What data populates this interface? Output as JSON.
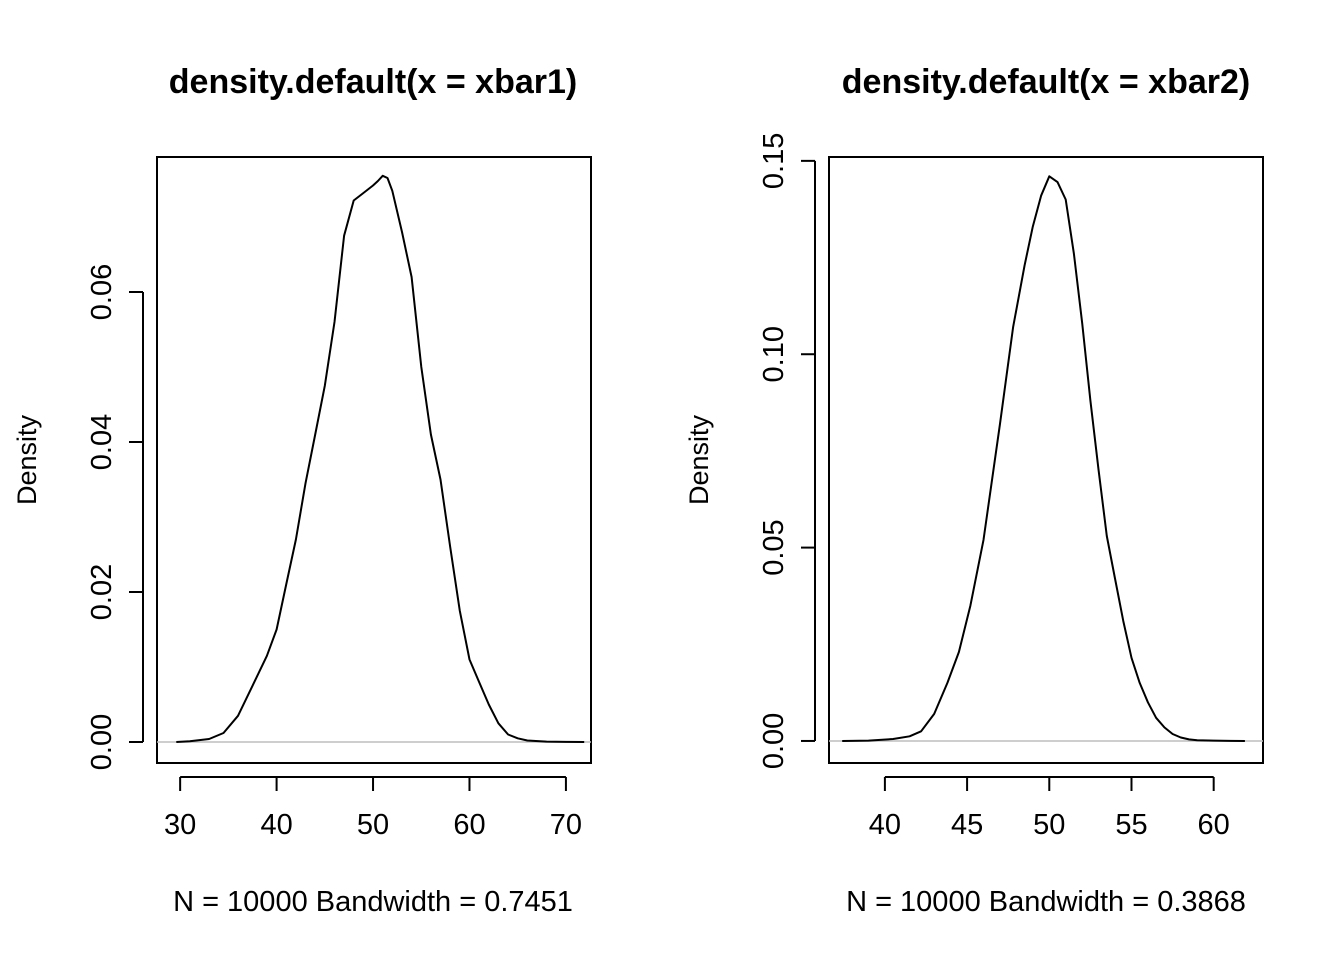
{
  "chart_data": [
    {
      "type": "line",
      "title": "density.default(x = xbar1)",
      "xlabel": "N = 10000   Bandwidth = 0.7451",
      "ylabel": "Density",
      "xlim": [
        27.6,
        72.6
      ],
      "ylim": [
        -0.0028,
        0.078
      ],
      "x_ticks": [
        30,
        40,
        50,
        60,
        70
      ],
      "x_tick_labels": [
        "30",
        "40",
        "50",
        "60",
        "70"
      ],
      "y_ticks": [
        0.0,
        0.02,
        0.04,
        0.06
      ],
      "y_tick_labels": [
        "0.00",
        "0.02",
        "0.04",
        "0.06"
      ],
      "baseline": 0,
      "grid": false,
      "x": [
        29.6,
        31,
        33,
        34.5,
        36,
        37.5,
        39,
        40,
        41,
        42,
        43,
        44,
        45,
        46,
        47,
        48,
        49,
        50,
        50.5,
        51,
        51.5,
        52,
        53,
        54,
        55,
        56,
        57,
        58,
        59,
        60,
        61,
        62,
        63,
        64,
        65,
        66,
        68,
        70,
        71.9
      ],
      "values": [
        0.0,
        0.0001,
        0.0004,
        0.0012,
        0.0035,
        0.0075,
        0.0115,
        0.015,
        0.021,
        0.027,
        0.0345,
        0.041,
        0.0475,
        0.056,
        0.0675,
        0.0722,
        0.0732,
        0.0742,
        0.0748,
        0.0755,
        0.0752,
        0.0735,
        0.068,
        0.062,
        0.05,
        0.041,
        0.035,
        0.026,
        0.0175,
        0.011,
        0.008,
        0.005,
        0.0025,
        0.001,
        0.0005,
        0.0002,
        5e-05,
        2e-05,
        0.0
      ]
    },
    {
      "type": "line",
      "title": "density.default(x = xbar2)",
      "xlabel": "N = 10000   Bandwidth = 0.3868",
      "ylabel": "Density",
      "xlim": [
        36.6,
        63.0
      ],
      "ylim": [
        -0.0057,
        0.151
      ],
      "x_ticks": [
        40,
        45,
        50,
        55,
        60
      ],
      "x_tick_labels": [
        "40",
        "45",
        "50",
        "55",
        "60"
      ],
      "y_ticks": [
        0.0,
        0.05,
        0.1,
        0.15
      ],
      "y_tick_labels": [
        "0.00",
        "0.05",
        "0.10",
        "0.15"
      ],
      "baseline": 0,
      "grid": false,
      "x": [
        37.4,
        39,
        40.5,
        41.5,
        42.2,
        43,
        43.8,
        44.5,
        45.2,
        46,
        47,
        47.8,
        48.5,
        49,
        49.5,
        50,
        50.5,
        51,
        51.5,
        52,
        52.5,
        53,
        53.5,
        54,
        54.5,
        55,
        55.5,
        56,
        56.5,
        57,
        57.5,
        58,
        58.5,
        59,
        60,
        61,
        61.9
      ],
      "values": [
        0.0,
        0.0001,
        0.0005,
        0.0012,
        0.0025,
        0.007,
        0.015,
        0.023,
        0.035,
        0.052,
        0.082,
        0.107,
        0.123,
        0.133,
        0.141,
        0.146,
        0.1445,
        0.14,
        0.126,
        0.108,
        0.088,
        0.07,
        0.053,
        0.042,
        0.031,
        0.0215,
        0.015,
        0.01,
        0.006,
        0.0035,
        0.0018,
        0.0009,
        0.0004,
        0.0002,
        0.0001,
        2e-05,
        0.0
      ]
    }
  ]
}
